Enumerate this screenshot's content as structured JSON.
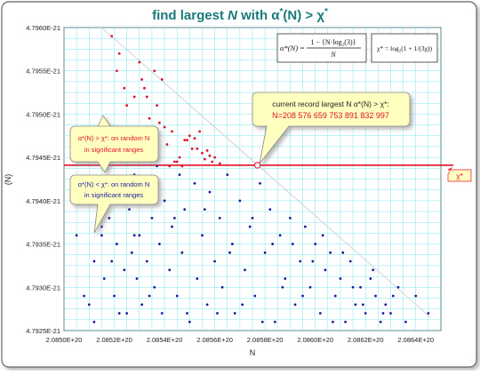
{
  "chart_data": {
    "type": "scatter",
    "title_prefix": "find largest ",
    "title_n": "N",
    "title_mid": " with α",
    "title_sup": "*",
    "title_suffix": "(N) > χ",
    "title_sup2": "*",
    "xlabel": "N",
    "ylabel": "(N)",
    "xlim": [
      2.085e+20,
      2.0865e+20
    ],
    "ylim": [
      4.7925e-21,
      4.796e-21
    ],
    "x_ticks": [
      2.085e+20,
      2.0852e+20,
      2.0854e+20,
      2.0856e+20,
      2.0858e+20,
      2.086e+20,
      2.0862e+20,
      2.0864e+20
    ],
    "x_tick_labels": [
      "2.0850E+20",
      "2.0852E+20",
      "2.0854E+20",
      "2.0856E+20",
      "2.0858E+20",
      "2.0860E+20",
      "2.0862E+20",
      "2.0864E+20"
    ],
    "y_ticks": [
      4.7925e-21,
      4.793e-21,
      4.7935e-21,
      4.794e-21,
      4.7945e-21,
      4.795e-21,
      4.7955e-21,
      4.796e-21
    ],
    "y_tick_labels": [
      "4.7925E-21",
      "4.7930E-21",
      "4.7935E-21",
      "4.7940E-21",
      "4.7945E-21",
      "4.7950E-21",
      "4.7955E-21",
      "4.7960E-21"
    ],
    "grid": true,
    "chi_star": 4.79441e-21,
    "chi_label": "χ*",
    "record": {
      "x": 2.08577e+20,
      "y": 4.79441e-21
    },
    "colors": {
      "above": "#e0102a",
      "below": "#1a1aa0",
      "threshold": "#e0102a",
      "grid": "#7fe8ef",
      "diagonal": "#c8c8c8",
      "title": "#1a7a7a"
    },
    "series": [
      {
        "x": [
          2.08519e+20,
          2.08521e+20,
          2.08522e+20,
          2.08524e+20,
          2.08525e+20,
          2.08525e+20,
          2.08527e+20,
          2.08528e+20,
          2.0853e+20,
          2.08531e+20,
          2.08532e+20,
          2.08533e+20,
          2.08534e+20,
          2.08534e+20,
          2.08535e+20,
          2.08536e+20,
          2.08537e+20,
          2.08538e+20,
          2.0854e+20,
          2.08541e+20,
          2.08543e+20,
          2.08545e+20,
          2.08546e+20,
          2.08548e+20,
          2.0855e+20,
          2.08552e+20,
          2.08553e+20,
          2.08555e+20,
          2.08556e+20,
          2.08557e+20,
          2.08558e+20,
          2.08559e+20,
          2.0856e+20,
          2.08562e+20,
          2.08518e+20,
          2.08526e+20,
          2.08529e+20,
          2.08536e+20,
          2.08539e+20,
          2.08542e+20,
          2.08544e+20,
          2.08547e+20,
          2.08549e+20,
          2.08551e+20,
          2.08554e+20
        ],
        "y": [
          4.7959e-21,
          4.7955e-21,
          4.7957e-21,
          4.7953e-21,
          4.7951e-21,
          4.7946e-21,
          4.7948e-21,
          4.7952e-21,
          4.7956e-21,
          4.7954e-21,
          4.7953e-21,
          4.7952e-21,
          4.79495e-21,
          4.7946e-21,
          4.7947e-21,
          4.79455e-21,
          4.7951e-21,
          4.7949e-21,
          4.79485e-21,
          4.79465e-21,
          4.7948e-21,
          4.79445e-21,
          4.7945e-21,
          4.7947e-21,
          4.79475e-21,
          4.79472e-21,
          4.7946e-21,
          4.79455e-21,
          4.79448e-21,
          4.79458e-21,
          4.79452e-21,
          4.79445e-21,
          4.7945e-21,
          4.79443e-21,
          4.7946e-21,
          4.7945e-21,
          4.7947e-21,
          4.7955e-21,
          4.7954e-21,
          4.7944e-21,
          4.79445e-21,
          4.7944e-21,
          4.7947e-21,
          4.7946e-21,
          4.7948e-21
        ],
        "marker_color": "#e0102a"
      },
      {
        "x": [
          2.0851e+20,
          2.08512e+20,
          2.08513e+20,
          2.08515e+20,
          2.08516e+20,
          2.08518e+20,
          2.0852e+20,
          2.08521e+20,
          2.08523e+20,
          2.08524e+20,
          2.08525e+20,
          2.08526e+20,
          2.08527e+20,
          2.08528e+20,
          2.08529e+20,
          2.0853e+20,
          2.08531e+20,
          2.08532e+20,
          2.08533e+20,
          2.08535e+20,
          2.08536e+20,
          2.08537e+20,
          2.08538e+20,
          2.08539e+20,
          2.0854e+20,
          2.08542e+20,
          2.08543e+20,
          2.08545e+20,
          2.08546e+20,
          2.08547e+20,
          2.08548e+20,
          2.0855e+20,
          2.08552e+20,
          2.08553e+20,
          2.08555e+20,
          2.08557e+20,
          2.08558e+20,
          2.0856e+20,
          2.08562e+20,
          2.08563e+20,
          2.08565e+20,
          2.08567e+20,
          2.08568e+20,
          2.0857e+20,
          2.08572e+20,
          2.08574e+20,
          2.08576e+20,
          2.08578e+20,
          2.0858e+20,
          2.08582e+20,
          2.08584e+20,
          2.08586e+20,
          2.08588e+20,
          2.0859e+20,
          2.08592e+20,
          2.08594e+20,
          2.08596e+20,
          2.08598e+20,
          2.086e+20,
          2.08602e+20,
          2.08604e+20,
          2.08606e+20,
          2.08608e+20,
          2.0861e+20,
          2.08612e+20,
          2.08614e+20,
          2.08616e+20,
          2.08618e+20,
          2.0862e+20,
          2.08622e+20,
          2.08624e+20,
          2.08626e+20,
          2.08628e+20,
          2.0863e+20,
          2.08633e+20,
          2.08636e+20,
          2.0864e+20,
          2.08645e+20,
          2.08505e+20,
          2.08508e+20,
          2.08512e+20,
          2.08515e+20,
          2.08519e+20,
          2.08522e+20,
          2.08528e+20,
          2.08534e+20,
          2.08544e+20,
          2.08549e+20,
          2.08556e+20,
          2.08561e+20,
          2.08566e+20,
          2.08571e+20,
          2.08575e+20,
          2.08579e+20,
          2.08583e+20,
          2.08587e+20,
          2.08591e+20,
          2.08595e+20,
          2.08599e+20,
          2.08603e+20,
          2.08607e+20,
          2.08611e+20,
          2.08615e+20,
          2.08619e+20,
          2.08623e+20,
          2.08627e+20,
          2.08631e+20
        ],
        "y": [
          4.7928e-21,
          4.7933e-21,
          4.7941e-21,
          4.7936e-21,
          4.7931e-21,
          4.7938e-21,
          4.7929e-21,
          4.7935e-21,
          4.7942e-21,
          4.7932e-21,
          4.7927e-21,
          4.7939e-21,
          4.7934e-21,
          4.7943e-21,
          4.7931e-21,
          4.7936e-21,
          4.7928e-21,
          4.7941e-21,
          4.7933e-21,
          4.7938e-21,
          4.793e-21,
          4.7944e-21,
          4.7935e-21,
          4.7927e-21,
          4.794e-21,
          4.7932e-21,
          4.7937e-21,
          4.7929e-21,
          4.7943e-21,
          4.7934e-21,
          4.7939e-21,
          4.7926e-21,
          4.7942e-21,
          4.7931e-21,
          4.7936e-21,
          4.7928e-21,
          4.7941e-21,
          4.7933e-21,
          4.7938e-21,
          4.793e-21,
          4.7943e-21,
          4.7935e-21,
          4.7927e-21,
          4.794e-21,
          4.7932e-21,
          4.7937e-21,
          4.7929e-21,
          4.7942e-21,
          4.7934e-21,
          4.7939e-21,
          4.7926e-21,
          4.7936e-21,
          4.7931e-21,
          4.7938e-21,
          4.7928e-21,
          4.7933e-21,
          4.7937e-21,
          4.793e-21,
          4.7935e-21,
          4.7927e-21,
          4.7932e-21,
          4.7934e-21,
          4.7929e-21,
          4.7931e-21,
          4.7926e-21,
          4.7933e-21,
          4.7928e-21,
          4.793e-21,
          4.7927e-21,
          4.7931e-21,
          4.7929e-21,
          4.7926e-21,
          4.7928e-21,
          4.7927e-21,
          4.793e-21,
          4.7926e-21,
          4.7929e-21,
          4.7927e-21,
          4.7936e-21,
          4.7929e-21,
          4.7926e-21,
          4.7937e-21,
          4.7933e-21,
          4.7927e-21,
          4.7936e-21,
          4.7929e-21,
          4.7938e-21,
          4.7927e-21,
          4.7939e-21,
          4.7927e-21,
          4.7934e-21,
          4.7928e-21,
          4.7938e-21,
          4.7926e-21,
          4.7935e-21,
          4.793e-21,
          4.7935e-21,
          4.7929e-21,
          4.7933e-21,
          4.7936e-21,
          4.7926e-21,
          4.7934e-21,
          4.793e-21,
          4.7928e-21,
          4.7932e-21,
          4.7927e-21,
          4.7929e-21
        ],
        "marker_color": "#1a1aa0"
      }
    ]
  },
  "formulas": {
    "alpha": {
      "lhs": "α*(N) =",
      "numerator": "1 − {N·log₂(3)}",
      "denominator": "N"
    },
    "chi": {
      "text": "χ* = log₂(1 + 1/(3χ))"
    }
  },
  "callouts": {
    "record_line1": "current record largest N  α*(N) > χ*:",
    "record_line2": "N=208 576 659 753 891 832 997",
    "above_line1": "α*(N) > χ*: on random N",
    "above_line2": "in significant ranges",
    "below_line1": "α*(N) < χ*: on random N",
    "below_line2": "in significant ranges"
  }
}
